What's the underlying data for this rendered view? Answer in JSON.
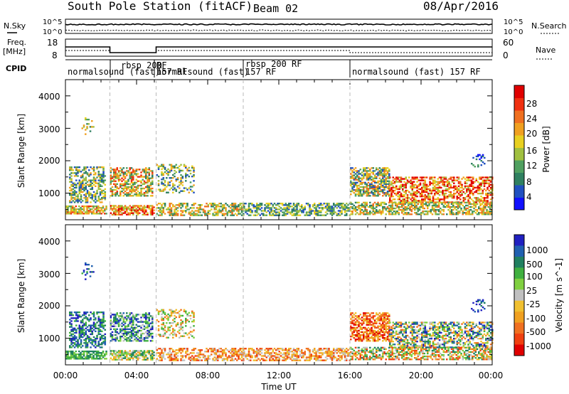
{
  "header": {
    "station": "South Pole Station (fitACF)",
    "beam": "Beam 02",
    "date": "08/Apr/2016"
  },
  "panel_labels": {
    "nsky": "N.Sky",
    "freq_line1": "Freq.",
    "freq_line2": "[MHz]",
    "cpid": "CPID",
    "nsearch": "N.Search",
    "nave": "Nave"
  },
  "top_axes": {
    "noise_ticks": [
      "10^5",
      "10^0"
    ],
    "noise_right_ticks": [
      "10^5",
      "10^0"
    ],
    "freq_ticks": [
      "18",
      "8"
    ],
    "nave_ticks": [
      "60",
      "0"
    ]
  },
  "cpid_segments": [
    {
      "label": "normalsound (fast)",
      "start": 0.0
    },
    {
      "label": "rbsp 200",
      "start": 2.5
    },
    {
      "label": "RF",
      "start": 5.1
    },
    {
      "label": "157 RF",
      "start": 5.1
    },
    {
      "label": "normalsound (fast)",
      "start": 5.1
    },
    {
      "label": "rbsp 200 RF",
      "start": 10.0
    },
    {
      "label": "157 RF",
      "start": 10.0
    },
    {
      "label": "normalsound (fast) 157 RF",
      "start": 16.0
    }
  ],
  "chart_data": [
    {
      "type": "heatmap",
      "quantity": "Power",
      "xlabel": "",
      "ylabel": "Slant Range [km]",
      "xlim": [
        0,
        24
      ],
      "ylim": [
        180,
        4500
      ],
      "y_ticks": [
        "1000",
        "2000",
        "3000",
        "4000"
      ],
      "colorbar": {
        "label": "Power [dB]",
        "ticks": [
          "4",
          "8",
          "12",
          "16",
          "20",
          "24",
          "28"
        ],
        "range": [
          0,
          30
        ]
      },
      "mode_change_times": [
        2.5,
        5.1,
        10.0,
        16.0
      ]
    },
    {
      "type": "heatmap",
      "quantity": "Velocity",
      "xlabel": "Time UT",
      "ylabel": "Slant Range [km]",
      "xlim": [
        0,
        24
      ],
      "ylim": [
        180,
        4500
      ],
      "x_ticks": [
        "00:00",
        "04:00",
        "08:00",
        "12:00",
        "16:00",
        "20:00",
        "00:00"
      ],
      "y_ticks": [
        "1000",
        "2000",
        "3000",
        "4000"
      ],
      "colorbar": {
        "label": "Velocity [m s^-1]",
        "ticks": [
          "1000",
          "500",
          "100",
          "25",
          "-25",
          "-100",
          "-500",
          "-1000"
        ]
      },
      "mode_change_times": [
        2.5,
        5.1,
        10.0,
        16.0
      ]
    }
  ],
  "colors": {
    "power_scale": [
      "#1010ff",
      "#2050c0",
      "#2f8060",
      "#50a060",
      "#a0c040",
      "#e8d020",
      "#f0a020",
      "#f07020",
      "#f03010",
      "#e00000"
    ],
    "velocity_scale": [
      "#2020c0",
      "#2060b0",
      "#208060",
      "#40b040",
      "#80d040",
      "#c0c0c0",
      "#f0c030",
      "#f0a020",
      "#f07020",
      "#f04010",
      "#e00000"
    ]
  }
}
